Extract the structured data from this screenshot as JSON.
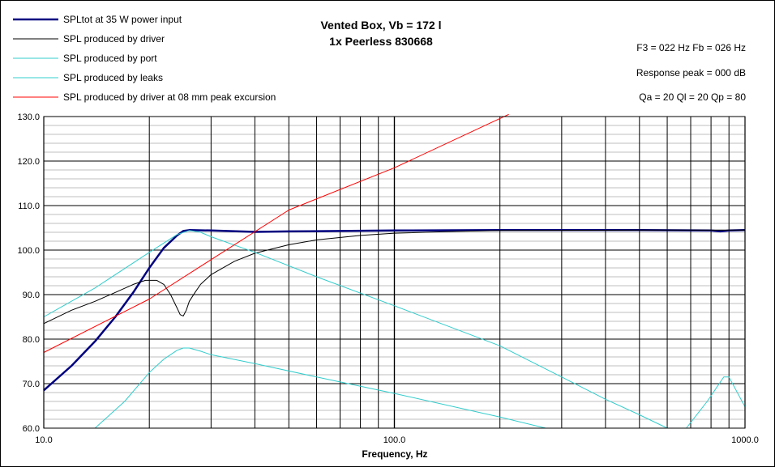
{
  "chart_data": {
    "type": "line",
    "title": "Vented Box, Vb = 172 l",
    "subtitle": "1x Peerless 830668",
    "xlabel": "Frequency, Hz",
    "ylabel": "",
    "x_scale": "log",
    "xlim": [
      10,
      1000
    ],
    "ylim": [
      60,
      130
    ],
    "x_tick_labels": [
      "10.0",
      "100.0",
      "1000.0"
    ],
    "y_tick_labels": [
      "60.0",
      "70.0",
      "80.0",
      "90.0",
      "100.0",
      "110.0",
      "120.0",
      "130.0"
    ],
    "grid": true,
    "legend_position": "top-left",
    "info_lines": [
      "F3 = 022 Hz  Fb = 026 Hz",
      "Response peak = 000 dB",
      "Qa = 20  Ql = 20  Qp = 80"
    ],
    "series": [
      {
        "name": "SPLtot at 35 W power input",
        "color": "#000080",
        "width": 2.5,
        "points": [
          [
            10,
            68.5
          ],
          [
            12,
            74
          ],
          [
            14,
            79.5
          ],
          [
            16,
            85
          ],
          [
            18,
            90.5
          ],
          [
            20,
            96
          ],
          [
            22,
            100.5
          ],
          [
            24,
            103.3
          ],
          [
            25,
            104.3
          ],
          [
            26,
            104.5
          ],
          [
            30,
            104.4
          ],
          [
            40,
            104.1
          ],
          [
            50,
            104.2
          ],
          [
            70,
            104.3
          ],
          [
            100,
            104.4
          ],
          [
            200,
            104.5
          ],
          [
            500,
            104.5
          ],
          [
            800,
            104.4
          ],
          [
            850,
            104.2
          ],
          [
            900,
            104.4
          ],
          [
            1000,
            104.5
          ]
        ]
      },
      {
        "name": "SPL produced by driver",
        "color": "#000000",
        "width": 1,
        "points": [
          [
            10,
            83.5
          ],
          [
            12,
            86.5
          ],
          [
            14,
            88.5
          ],
          [
            16,
            90.5
          ],
          [
            18,
            92.3
          ],
          [
            19.5,
            93.2
          ],
          [
            21,
            93.2
          ],
          [
            22,
            92.3
          ],
          [
            23,
            90
          ],
          [
            24,
            87
          ],
          [
            24.5,
            85.5
          ],
          [
            25,
            85.2
          ],
          [
            25.5,
            86.5
          ],
          [
            26,
            88.5
          ],
          [
            27,
            90.5
          ],
          [
            28,
            92.3
          ],
          [
            30,
            94.5
          ],
          [
            35,
            97.5
          ],
          [
            40,
            99.3
          ],
          [
            50,
            101.2
          ],
          [
            60,
            102.3
          ],
          [
            80,
            103.3
          ],
          [
            100,
            103.8
          ],
          [
            150,
            104.2
          ],
          [
            200,
            104.4
          ],
          [
            500,
            104.5
          ],
          [
            1000,
            104.5
          ]
        ]
      },
      {
        "name": "SPL produced by port",
        "color": "#33cccc",
        "width": 1,
        "points": [
          [
            10,
            85
          ],
          [
            14,
            91.5
          ],
          [
            20,
            99.5
          ],
          [
            24,
            103.5
          ],
          [
            26,
            104.4
          ],
          [
            28,
            104
          ],
          [
            30,
            103
          ],
          [
            40,
            99.5
          ],
          [
            60,
            94
          ],
          [
            100,
            87.5
          ],
          [
            200,
            78.5
          ],
          [
            300,
            71.5
          ],
          [
            400,
            66.5
          ],
          [
            500,
            63
          ],
          [
            600,
            60
          ]
        ]
      },
      {
        "name": "SPL produced by leaks",
        "color": "#33cccc",
        "width": 1,
        "points": [
          [
            14,
            60
          ],
          [
            17,
            66
          ],
          [
            20,
            72.5
          ],
          [
            22,
            75.5
          ],
          [
            24,
            77.5
          ],
          [
            25,
            78
          ],
          [
            26,
            78
          ],
          [
            28,
            77.3
          ],
          [
            30,
            76.5
          ],
          [
            40,
            74.5
          ],
          [
            60,
            71.5
          ],
          [
            100,
            67.8
          ],
          [
            200,
            62.5
          ],
          [
            270,
            60
          ]
        ]
      },
      {
        "name": "SPL produced by driver at 08 mm peak excursion",
        "color": "#ff0000",
        "width": 1,
        "points": [
          [
            10,
            77
          ],
          [
            20,
            89
          ],
          [
            50,
            109
          ],
          [
            100,
            118.5
          ],
          [
            212,
            130.5
          ]
        ]
      },
      {
        "name": "",
        "color": "#33cccc",
        "width": 1,
        "points": [
          [
            680,
            60
          ],
          [
            780,
            66
          ],
          [
            870,
            71.5
          ],
          [
            900,
            71.5
          ],
          [
            1000,
            64.8
          ]
        ]
      }
    ]
  }
}
